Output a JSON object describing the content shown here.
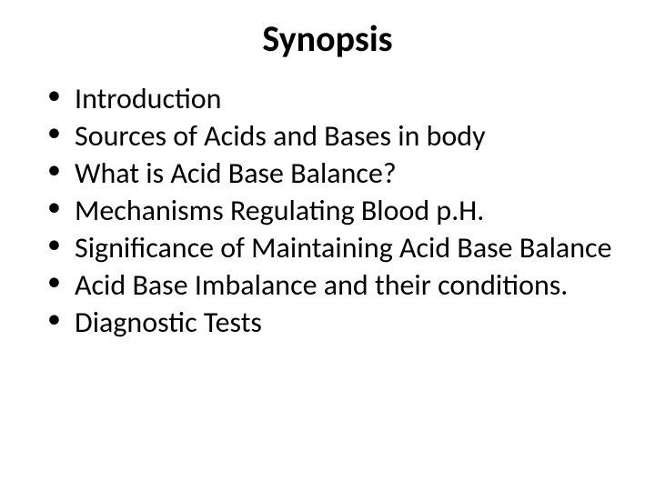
{
  "slide": {
    "title": "Synopsis",
    "bullets": [
      "Introduction",
      "Sources of Acids and Bases in body",
      "What is Acid Base Balance?",
      "Mechanisms Regulating Blood p.H.",
      "Significance of Maintaining Acid Base Balance",
      "Acid Base Imbalance and their conditions.",
      "Diagnostic Tests"
    ],
    "styling": {
      "background_color": "#ffffff",
      "text_color": "#000000",
      "title_fontsize": 40,
      "title_fontweight": "bold",
      "body_fontsize": 32,
      "font_family": "Calibri",
      "bullet_char": "•"
    }
  }
}
